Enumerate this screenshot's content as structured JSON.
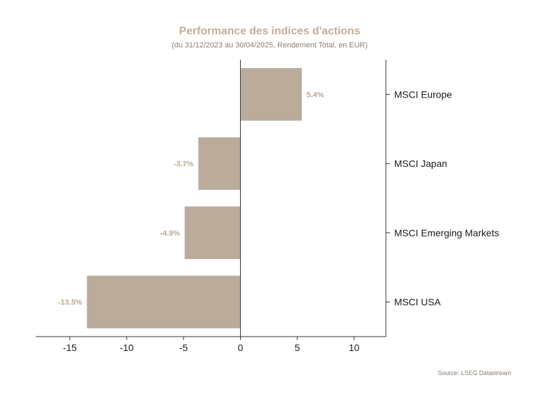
{
  "chart_data": {
    "type": "bar",
    "orientation": "horizontal",
    "title": "Performance des indices d'actions",
    "subtitle": "(du 31/12/2023 au 30/04/2025, Rendement Total, en EUR)",
    "categories": [
      "MSCI Europe",
      "MSCI Japan",
      "MSCI Emerging Markets",
      "MSCI USA"
    ],
    "values": [
      5.4,
      -3.7,
      -4.9,
      -13.5
    ],
    "data_labels": [
      "5.4%",
      "-3.7%",
      "-4.9%",
      "-13.5%"
    ],
    "xlim": [
      -18,
      12.8
    ],
    "xticks": [
      -15,
      -10,
      -5,
      0,
      5,
      10
    ],
    "xtick_labels": [
      "-15",
      "-10",
      "-5",
      "0",
      "5",
      "10"
    ],
    "category_axis_position": "right",
    "grid": false,
    "legend": "none",
    "source": "Source: LSEG Datastream",
    "colors": {
      "bar": "#bbab9b",
      "title": "#c1ae9c",
      "subtitle": "#8a7d72",
      "data_label": "#bca98f",
      "axis": "#333333",
      "tick_label": "#1a1a1a",
      "source": "#8a7d72"
    }
  }
}
